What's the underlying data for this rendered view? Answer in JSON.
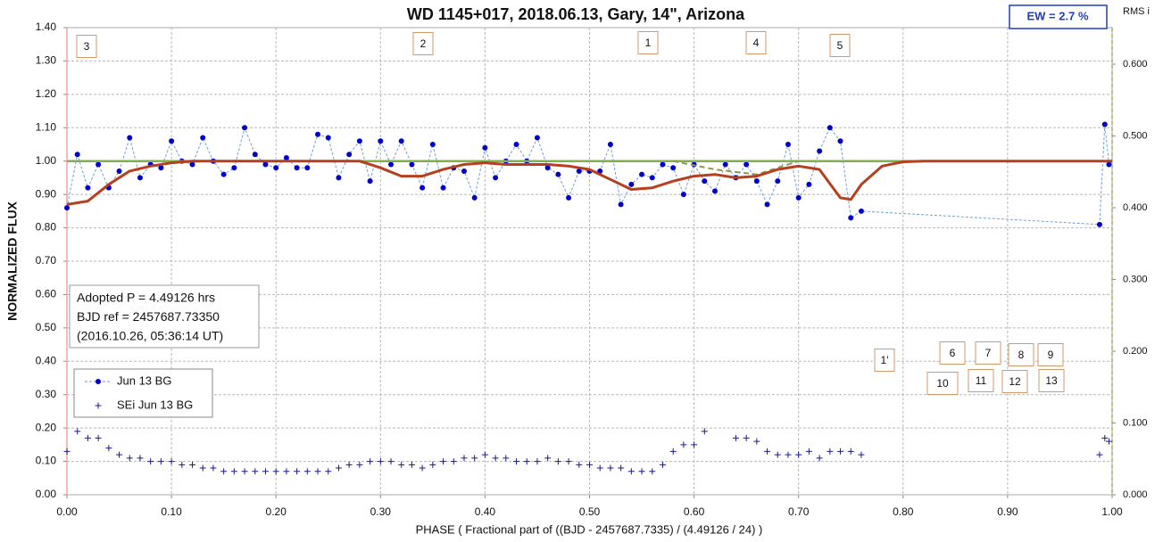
{
  "chart_data": {
    "type": "line",
    "title": "WD 1145+017, 2018.06.13, Gary, 14\", Arizona",
    "xlabel": "PHASE  ( Fractional part of ((BJD - 2457687.7335)  / (4.49126  / 24) )",
    "ylabel": "NORMALIZED  FLUX",
    "y2label": "RMS i",
    "xlim": [
      0,
      1
    ],
    "ylim": [
      0,
      1.4
    ],
    "y2lim": [
      0,
      0.651
    ],
    "grid": true,
    "legend": "lower left",
    "xticks": [
      {
        "value": 0,
        "label": "0.00"
      },
      {
        "value": 0.1,
        "label": "0.10"
      },
      {
        "value": 0.2,
        "label": "0.20"
      },
      {
        "value": 0.3,
        "label": "0.30"
      },
      {
        "value": 0.4,
        "label": "0.40"
      },
      {
        "value": 0.5,
        "label": "0.50"
      },
      {
        "value": 0.6,
        "label": "0.60"
      },
      {
        "value": 0.7,
        "label": "0.70"
      },
      {
        "value": 0.8,
        "label": "0.80"
      },
      {
        "value": 0.9,
        "label": "0.90"
      },
      {
        "value": 1,
        "label": "1.00"
      }
    ],
    "yticks": [
      {
        "value": 0,
        "label": "0.00"
      },
      {
        "value": 0.1,
        "label": "0.10"
      },
      {
        "value": 0.2,
        "label": "0.20"
      },
      {
        "value": 0.3,
        "label": "0.30"
      },
      {
        "value": 0.4,
        "label": "0.40"
      },
      {
        "value": 0.5,
        "label": "0.50"
      },
      {
        "value": 0.6,
        "label": "0.60"
      },
      {
        "value": 0.7,
        "label": "0.70"
      },
      {
        "value": 0.8,
        "label": "0.80"
      },
      {
        "value": 0.9,
        "label": "0.90"
      },
      {
        "value": 1,
        "label": "1.00"
      },
      {
        "value": 1.1,
        "label": "1.10"
      },
      {
        "value": 1.2,
        "label": "1.20"
      },
      {
        "value": 1.3,
        "label": "1.30"
      },
      {
        "value": 1.4,
        "label": "1.40"
      }
    ],
    "y2ticks": [
      {
        "value": 0,
        "label": "0.000"
      },
      {
        "value": 0.1,
        "label": "0.100"
      },
      {
        "value": 0.2,
        "label": "0.200"
      },
      {
        "value": 0.3,
        "label": "0.300"
      },
      {
        "value": 0.4,
        "label": "0.400"
      },
      {
        "value": 0.5,
        "label": "0.500"
      },
      {
        "value": 0.6,
        "label": "0.600"
      }
    ],
    "series": [
      {
        "name": "Jun 13 BG",
        "color": "#0000cc",
        "line_color": "#6f9fd8",
        "line": "dashed",
        "marker": "dot",
        "x": [
          0,
          0.01,
          0.02,
          0.03,
          0.04,
          0.05,
          0.06,
          0.07,
          0.08,
          0.09,
          0.1,
          0.11,
          0.12,
          0.13,
          0.14,
          0.15,
          0.16,
          0.17,
          0.18,
          0.19,
          0.2,
          0.21,
          0.22,
          0.23,
          0.24,
          0.25,
          0.26,
          0.27,
          0.28,
          0.29,
          0.3,
          0.31,
          0.32,
          0.33,
          0.34,
          0.35,
          0.36,
          0.37,
          0.38,
          0.39,
          0.4,
          0.41,
          0.42,
          0.43,
          0.44,
          0.45,
          0.46,
          0.47,
          0.48,
          0.49,
          0.5,
          0.51,
          0.52,
          0.53,
          0.54,
          0.55,
          0.56,
          0.57,
          0.58,
          0.59,
          0.6,
          0.61,
          0.62,
          0.63,
          0.64,
          0.65,
          0.66,
          0.67,
          0.68,
          0.69,
          0.7,
          0.71,
          0.72,
          0.73,
          0.74,
          0.75,
          0.76,
          0.988,
          0.993,
          0.997
        ],
        "values": [
          0.86,
          1.02,
          0.92,
          0.99,
          0.92,
          0.97,
          1.07,
          0.95,
          0.99,
          0.98,
          1.06,
          1.0,
          0.99,
          1.07,
          1.0,
          0.96,
          0.98,
          1.1,
          1.02,
          0.99,
          0.98,
          1.01,
          0.98,
          0.98,
          1.08,
          1.07,
          0.95,
          1.02,
          1.06,
          0.94,
          1.06,
          0.99,
          1.06,
          0.99,
          0.92,
          1.05,
          0.92,
          0.98,
          0.97,
          0.89,
          1.04,
          0.95,
          1.0,
          1.05,
          1.0,
          1.07,
          0.98,
          0.96,
          0.89,
          0.97,
          0.97,
          0.97,
          1.05,
          0.87,
          0.93,
          0.96,
          0.95,
          0.99,
          0.98,
          0.9,
          0.99,
          0.94,
          0.91,
          0.99,
          0.95,
          0.99,
          0.94,
          0.87,
          0.94,
          1.05,
          0.89,
          0.93,
          1.03,
          1.1,
          1.06,
          0.83,
          0.85,
          0.81,
          1.11,
          0.99
        ]
      },
      {
        "name": "SEi Jun 13 BG",
        "color": "#1a1a8c",
        "line": "none",
        "marker": "plus",
        "x": [
          0,
          0.01,
          0.02,
          0.03,
          0.04,
          0.05,
          0.06,
          0.07,
          0.08,
          0.09,
          0.1,
          0.11,
          0.12,
          0.13,
          0.14,
          0.15,
          0.16,
          0.17,
          0.18,
          0.19,
          0.2,
          0.21,
          0.22,
          0.23,
          0.24,
          0.25,
          0.26,
          0.27,
          0.28,
          0.29,
          0.3,
          0.31,
          0.32,
          0.33,
          0.34,
          0.35,
          0.36,
          0.37,
          0.38,
          0.39,
          0.4,
          0.41,
          0.42,
          0.43,
          0.44,
          0.45,
          0.46,
          0.47,
          0.48,
          0.49,
          0.5,
          0.51,
          0.52,
          0.53,
          0.54,
          0.55,
          0.56,
          0.57,
          0.58,
          0.59,
          0.6,
          0.61,
          0.62,
          0.63,
          0.64,
          0.65,
          0.66,
          0.67,
          0.68,
          0.69,
          0.7,
          0.71,
          0.72,
          0.73,
          0.74,
          0.75,
          0.76,
          0.988,
          0.993,
          0.997
        ],
        "values": [
          0.13,
          0.19,
          0.17,
          0.17,
          0.14,
          0.12,
          0.11,
          0.11,
          0.1,
          0.1,
          0.1,
          0.09,
          0.09,
          0.08,
          0.08,
          0.07,
          0.07,
          0.07,
          0.07,
          0.07,
          0.07,
          0.07,
          0.07,
          0.07,
          0.07,
          0.07,
          0.08,
          0.09,
          0.09,
          0.1,
          0.1,
          0.1,
          0.09,
          0.09,
          0.08,
          0.09,
          0.1,
          0.1,
          0.11,
          0.11,
          0.12,
          0.11,
          0.11,
          0.1,
          0.1,
          0.1,
          0.11,
          0.1,
          0.1,
          0.09,
          0.09,
          0.08,
          0.08,
          0.08,
          0.07,
          0.07,
          0.07,
          0.09,
          0.13,
          0.15,
          0.15,
          0.19,
          null,
          null,
          0.17,
          0.17,
          0.16,
          0.13,
          0.12,
          0.12,
          0.12,
          0.13,
          0.11,
          0.13,
          0.13,
          0.13,
          0.12,
          0.12,
          0.17,
          0.16
        ]
      },
      {
        "color": "#7fb04a",
        "line": "solid",
        "marker": "none",
        "width": 2.5,
        "x": [
          0,
          1
        ],
        "values": [
          1,
          1
        ]
      },
      {
        "color": "#8c9a4a",
        "line": "dashed",
        "marker": "none",
        "width": 2,
        "x": [
          0.58,
          0.62,
          0.66,
          0.7
        ],
        "values": [
          1,
          0.975,
          0.96,
          1
        ]
      },
      {
        "color": "#b5401f",
        "line": "solid",
        "marker": "none",
        "width": 3,
        "x": [
          0,
          0.02,
          0.04,
          0.06,
          0.08,
          0.1,
          0.12,
          0.28,
          0.3,
          0.32,
          0.34,
          0.36,
          0.38,
          0.4,
          0.42,
          0.46,
          0.48,
          0.5,
          0.52,
          0.54,
          0.56,
          0.58,
          0.6,
          0.62,
          0.64,
          0.66,
          0.68,
          0.7,
          0.72,
          0.74,
          0.75,
          0.76,
          0.78,
          0.8,
          0.82,
          1
        ],
        "values": [
          0.87,
          0.88,
          0.93,
          0.97,
          0.985,
          0.995,
          1,
          1,
          0.98,
          0.955,
          0.955,
          0.975,
          0.99,
          0.995,
          0.99,
          0.99,
          0.985,
          0.975,
          0.945,
          0.915,
          0.92,
          0.94,
          0.955,
          0.96,
          0.95,
          0.955,
          0.975,
          0.985,
          0.975,
          0.89,
          0.885,
          0.93,
          0.985,
          0.998,
          1,
          1
        ]
      }
    ],
    "annotations": [
      "3",
      "2",
      "1",
      "4",
      "5",
      "1'",
      "6",
      "7",
      "8",
      "9",
      "10",
      "11",
      "12",
      "13"
    ],
    "info": [
      "Adopted P = 4.49126 hrs",
      "BJD ref = 2457687.73350",
      "(2016.10.26, 05:36:14 UT)"
    ],
    "ew": "EW =  2.7 %"
  }
}
